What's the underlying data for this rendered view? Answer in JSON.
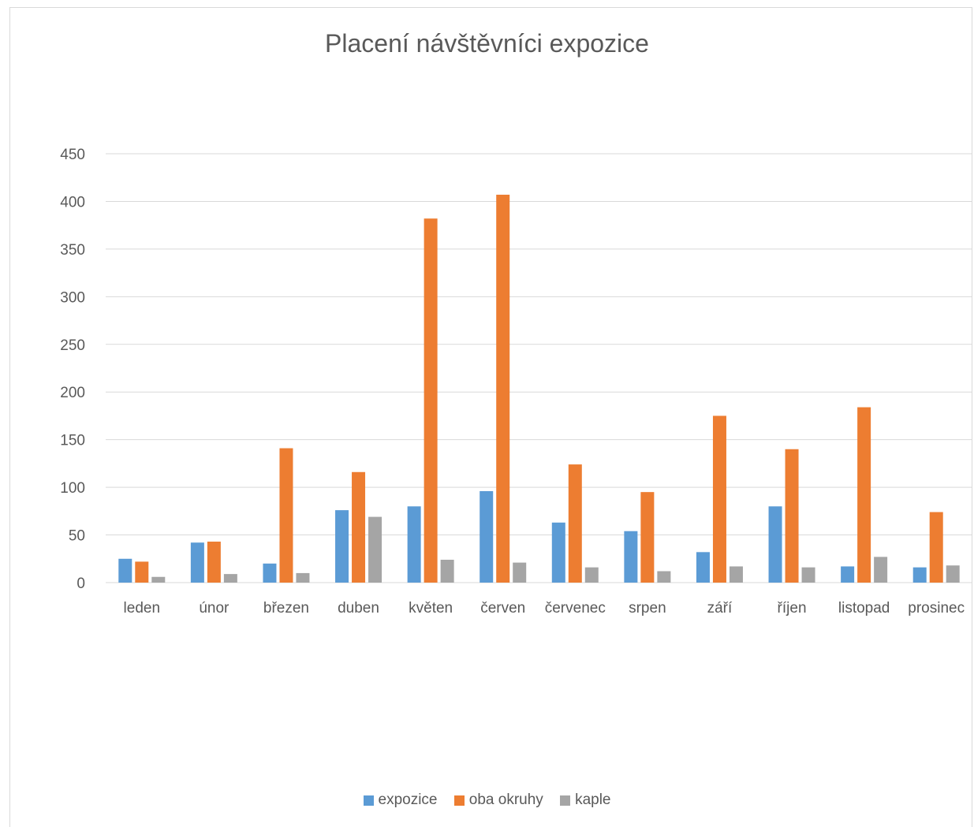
{
  "chart_data": {
    "type": "bar",
    "title": "Placení návštěvníci expozice",
    "xlabel": "",
    "ylabel": "",
    "ylim": [
      0,
      450
    ],
    "yticks": [
      0,
      50,
      100,
      150,
      200,
      250,
      300,
      350,
      400,
      450
    ],
    "grid": true,
    "legend_position": "bottom",
    "categories": [
      "leden",
      "únor",
      "březen",
      "duben",
      "květen",
      "červen",
      "červenec",
      "srpen",
      "září",
      "říjen",
      "listopad",
      "prosinec"
    ],
    "series": [
      {
        "name": "expozice",
        "color": "#5b9bd5",
        "values": [
          25,
          42,
          20,
          76,
          80,
          96,
          63,
          54,
          32,
          80,
          17,
          16
        ]
      },
      {
        "name": "oba okruhy",
        "color": "#ed7d31",
        "values": [
          22,
          43,
          141,
          116,
          382,
          407,
          124,
          95,
          175,
          140,
          184,
          74
        ]
      },
      {
        "name": "kaple",
        "color": "#a5a5a5",
        "values": [
          6,
          9,
          10,
          69,
          24,
          21,
          16,
          12,
          17,
          16,
          27,
          18
        ]
      }
    ]
  }
}
